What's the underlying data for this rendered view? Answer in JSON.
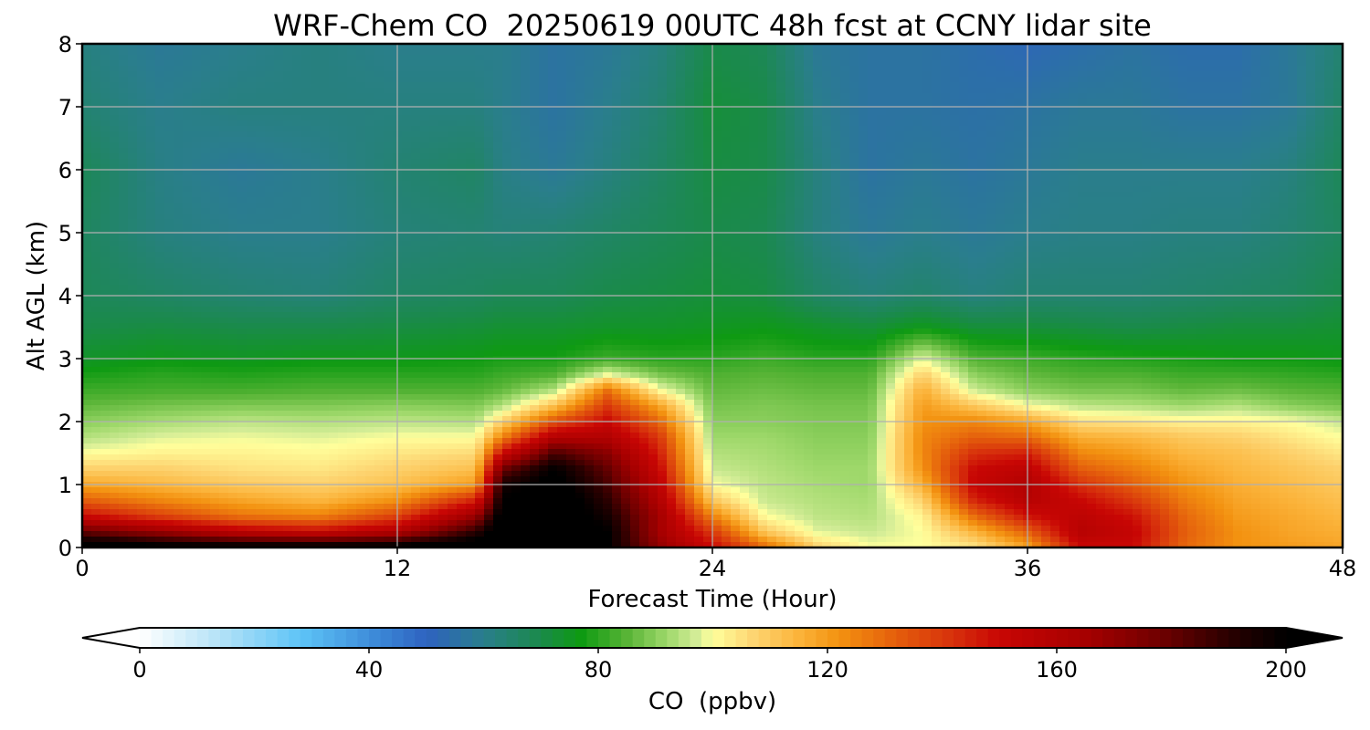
{
  "chart_data": {
    "type": "heatmap",
    "title": "WRF-Chem CO  20250619 00UTC 48h fcst at CCNY lidar site",
    "xlabel": "Forecast Time (Hour)",
    "ylabel": "Alt AGL (km)",
    "xlim": [
      0,
      48
    ],
    "ylim": [
      0,
      8
    ],
    "x_ticks": [
      0,
      12,
      24,
      36,
      48
    ],
    "x_tick_labels": [
      "0",
      "12",
      "24",
      "36",
      "48"
    ],
    "y_ticks": [
      0,
      1,
      2,
      3,
      4,
      5,
      6,
      7,
      8
    ],
    "y_tick_labels": [
      "0",
      "1",
      "2",
      "3",
      "4",
      "5",
      "6",
      "7",
      "8"
    ],
    "grid": true,
    "colorbar": {
      "label": "CO  (ppbv)",
      "range": [
        0,
        200
      ],
      "ticks": [
        0,
        40,
        80,
        120,
        160,
        200
      ],
      "tick_labels": [
        "0",
        "40",
        "80",
        "120",
        "160",
        "200"
      ],
      "extend": "both",
      "orientation": "horizontal"
    },
    "colorscale": [
      {
        "value": 0,
        "color": "#ffffff"
      },
      {
        "value": 15,
        "color": "#aee0f7"
      },
      {
        "value": 28,
        "color": "#5ec4f7"
      },
      {
        "value": 42,
        "color": "#3a86d6"
      },
      {
        "value": 50,
        "color": "#2e62c0"
      },
      {
        "value": 60,
        "color": "#2a7e8c"
      },
      {
        "value": 70,
        "color": "#1a8a4a"
      },
      {
        "value": 77,
        "color": "#0e9a12"
      },
      {
        "value": 85,
        "color": "#58b436"
      },
      {
        "value": 92,
        "color": "#9ed86a"
      },
      {
        "value": 97,
        "color": "#d2ec96"
      },
      {
        "value": 100,
        "color": "#ffff9c"
      },
      {
        "value": 107,
        "color": "#fdd572"
      },
      {
        "value": 115,
        "color": "#fbb33a"
      },
      {
        "value": 122,
        "color": "#f39210"
      },
      {
        "value": 132,
        "color": "#e45e0c"
      },
      {
        "value": 142,
        "color": "#d7300c"
      },
      {
        "value": 150,
        "color": "#c80604"
      },
      {
        "value": 165,
        "color": "#a60000"
      },
      {
        "value": 178,
        "color": "#700000"
      },
      {
        "value": 190,
        "color": "#2a0000"
      },
      {
        "value": 200,
        "color": "#000000"
      }
    ],
    "x": [
      0,
      3,
      6,
      9,
      12,
      15,
      16,
      18,
      20,
      22,
      24,
      26,
      28,
      30,
      32,
      34,
      36,
      38,
      40,
      42,
      44,
      46,
      48
    ],
    "y": [
      0,
      0.25,
      0.5,
      0.75,
      1,
      1.25,
      1.5,
      1.75,
      2,
      2.25,
      2.5,
      2.75,
      3,
      3.5,
      4,
      5,
      6,
      7,
      8
    ],
    "z": [
      [
        210,
        205,
        205,
        205,
        205,
        210,
        210,
        210,
        200,
        170,
        150,
        130,
        108,
        100,
        100,
        104,
        118,
        150,
        150,
        130,
        122,
        120,
        118
      ],
      [
        180,
        168,
        155,
        150,
        160,
        190,
        210,
        210,
        200,
        165,
        140,
        110,
        98,
        96,
        100,
        115,
        132,
        158,
        152,
        132,
        122,
        118,
        116
      ],
      [
        150,
        138,
        128,
        125,
        138,
        168,
        205,
        210,
        195,
        165,
        125,
        100,
        95,
        94,
        102,
        130,
        148,
        155,
        148,
        130,
        120,
        117,
        114
      ],
      [
        132,
        124,
        118,
        114,
        122,
        145,
        200,
        210,
        190,
        160,
        110,
        96,
        94,
        93,
        108,
        145,
        158,
        150,
        140,
        126,
        118,
        115,
        112
      ],
      [
        118,
        114,
        110,
        108,
        112,
        120,
        195,
        205,
        185,
        155,
        100,
        95,
        93,
        92,
        116,
        152,
        160,
        142,
        132,
        122,
        116,
        113,
        110
      ],
      [
        108,
        108,
        105,
        104,
        108,
        112,
        178,
        200,
        180,
        150,
        96,
        94,
        92,
        92,
        122,
        150,
        155,
        132,
        126,
        118,
        114,
        111,
        108
      ],
      [
        100,
        102,
        102,
        101,
        104,
        106,
        150,
        185,
        172,
        145,
        94,
        93,
        91,
        91,
        124,
        142,
        145,
        124,
        120,
        114,
        112,
        108,
        104
      ],
      [
        94,
        98,
        99,
        98,
        100,
        100,
        125,
        160,
        160,
        140,
        92,
        92,
        90,
        90,
        124,
        132,
        130,
        116,
        114,
        110,
        108,
        104,
        100
      ],
      [
        90,
        93,
        95,
        94,
        95,
        94,
        108,
        135,
        150,
        130,
        90,
        90,
        89,
        89,
        122,
        124,
        118,
        105,
        104,
        102,
        102,
        100,
        96
      ],
      [
        86,
        88,
        89,
        89,
        90,
        89,
        94,
        112,
        140,
        118,
        88,
        89,
        88,
        88,
        120,
        110,
        100,
        95,
        94,
        92,
        94,
        90,
        88
      ],
      [
        82,
        83,
        83,
        84,
        84,
        84,
        86,
        94,
        128,
        100,
        86,
        87,
        86,
        86,
        116,
        96,
        90,
        88,
        88,
        86,
        87,
        85,
        84
      ],
      [
        78,
        80,
        79,
        80,
        80,
        80,
        82,
        84,
        98,
        88,
        84,
        85,
        84,
        84,
        108,
        90,
        86,
        84,
        84,
        82,
        82,
        81,
        80
      ],
      [
        74,
        76,
        75,
        76,
        76,
        77,
        78,
        78,
        82,
        80,
        80,
        82,
        80,
        80,
        98,
        84,
        82,
        80,
        79,
        78,
        77,
        77,
        76
      ],
      [
        70,
        71,
        70,
        70,
        71,
        72,
        73,
        73,
        74,
        74,
        75,
        76,
        74,
        72,
        76,
        72,
        72,
        71,
        70,
        71,
        72,
        72,
        73
      ],
      [
        68,
        66,
        64,
        63,
        66,
        67,
        68,
        68,
        70,
        71,
        72,
        71,
        66,
        63,
        65,
        62,
        64,
        64,
        64,
        65,
        66,
        67,
        70
      ],
      [
        67,
        62,
        60,
        60,
        63,
        64,
        63,
        64,
        66,
        68,
        70,
        69,
        62,
        58,
        60,
        58,
        60,
        61,
        61,
        62,
        62,
        64,
        67
      ],
      [
        68,
        61,
        58,
        60,
        64,
        66,
        61,
        58,
        62,
        66,
        71,
        70,
        62,
        56,
        58,
        56,
        58,
        60,
        60,
        60,
        60,
        62,
        68
      ],
      [
        64,
        60,
        62,
        62,
        62,
        62,
        60,
        56,
        60,
        64,
        72,
        70,
        60,
        56,
        56,
        55,
        56,
        58,
        58,
        56,
        56,
        58,
        66
      ],
      [
        62,
        58,
        60,
        62,
        60,
        60,
        60,
        56,
        58,
        62,
        70,
        68,
        58,
        56,
        56,
        54,
        52,
        54,
        56,
        54,
        54,
        58,
        64
      ]
    ]
  }
}
